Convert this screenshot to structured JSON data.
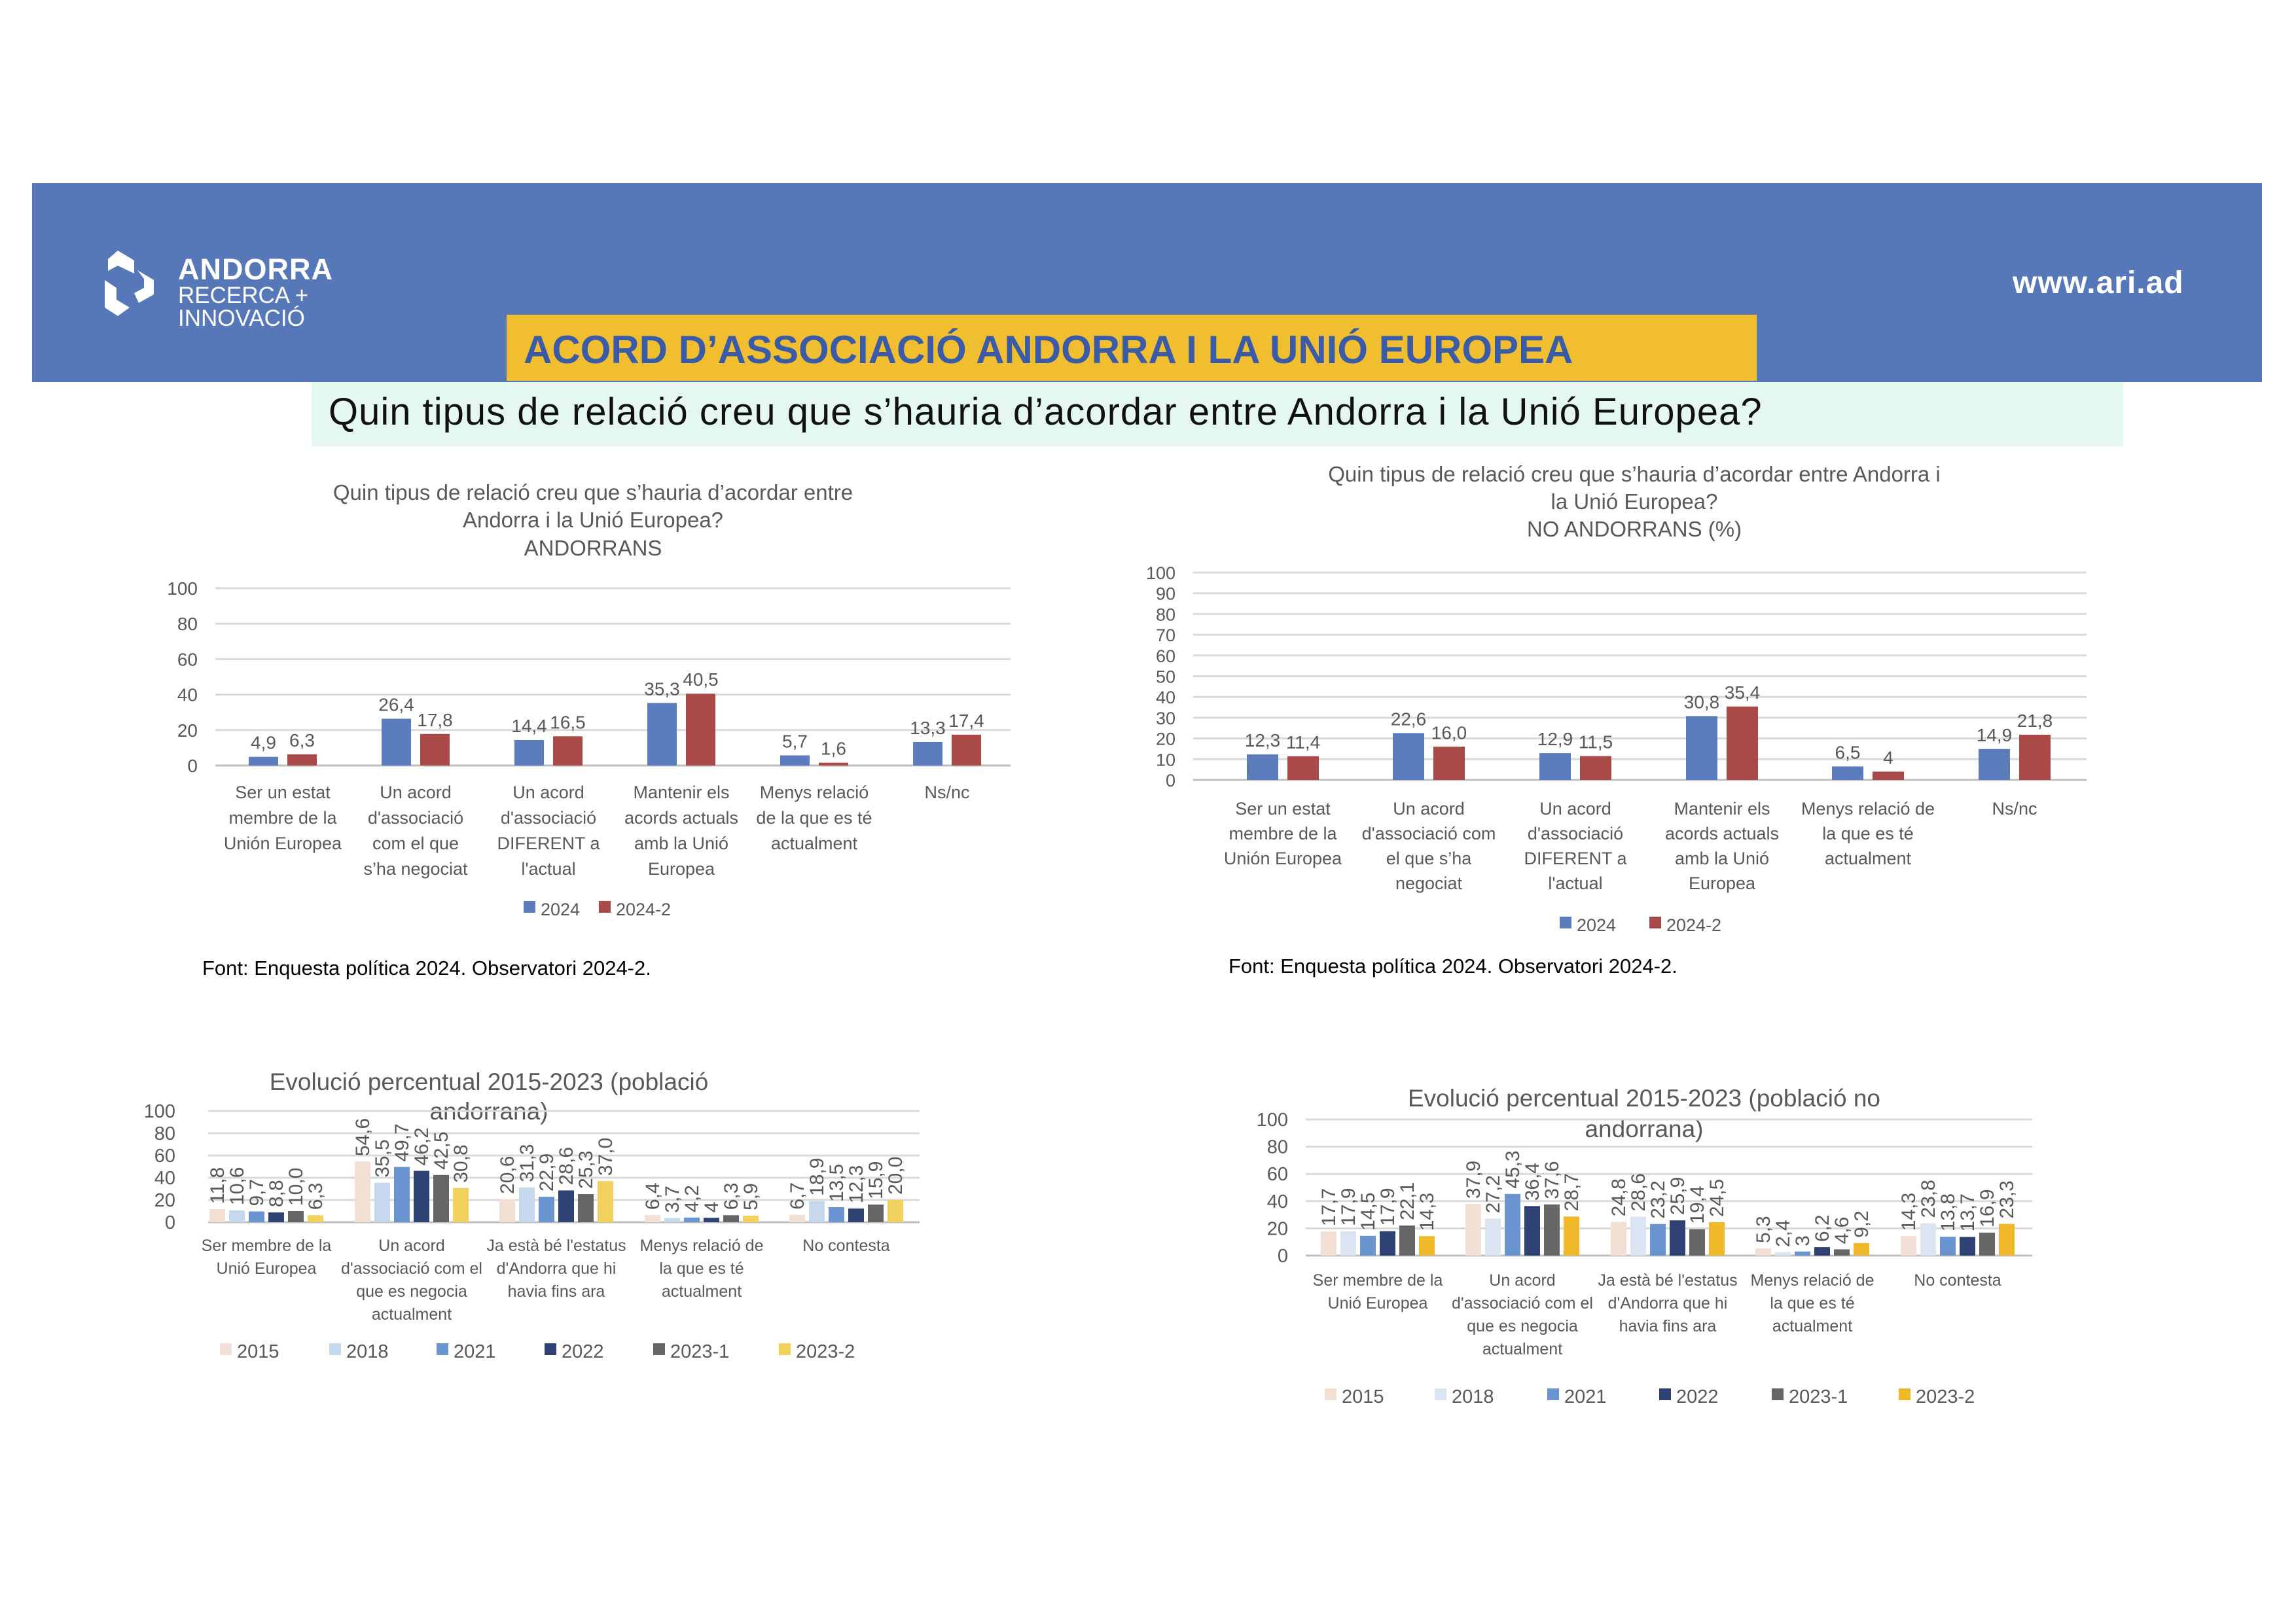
{
  "header": {
    "logo": {
      "line1": "ANDORRA",
      "line2": "RECERCA +",
      "line3": "INNOVACIÓ"
    },
    "website": "www.ari.ad",
    "banner_title": "ACORD D’ASSOCIACIÓ ANDORRA I LA UNIÓ EUROPEA",
    "question": "Quin tipus de relació creu que s’hauria d’acordar entre Andorra i la Unió Europea?"
  },
  "sources": [
    "Font: Enquesta política 2024. Observatori 2024-2.",
    "Font: Enquesta política 2024. Observatori 2024-2."
  ],
  "chart_data": [
    {
      "type": "bar",
      "title": [
        "Quin tipus de relació creu que s’hauria d’acordar entre",
        "Andorra i la Unió Europea?",
        "ANDORRANS"
      ],
      "ylim": [
        0,
        100
      ],
      "yticks": [
        "0",
        "20",
        "40",
        "60",
        "80",
        "100"
      ],
      "grid": true,
      "legend_position": "bottom",
      "categories": [
        [
          "Ser un estat",
          "membre de la",
          "Unión Europea"
        ],
        [
          "Un acord",
          "d'associació",
          "com el que",
          "s’ha negociat"
        ],
        [
          "Un acord",
          "d'associació",
          "DIFERENT a",
          "l'actual"
        ],
        [
          "Mantenir els",
          "acords actuals",
          "amb la Unió",
          "Europea"
        ],
        [
          "Menys relació",
          "de la que es té",
          "actualment"
        ],
        [
          "Ns/nc"
        ]
      ],
      "series": [
        {
          "name": "2024",
          "color": "#5B7DBE",
          "values": [
            4.9,
            26.4,
            14.4,
            35.3,
            5.7,
            13.3
          ],
          "labels": [
            "4,9",
            "26,4",
            "14,4",
            "35,3",
            "5,7",
            "13,3"
          ]
        },
        {
          "name": "2024-2",
          "color": "#A94A48",
          "values": [
            6.3,
            17.8,
            16.5,
            40.5,
            1.6,
            17.4
          ],
          "labels": [
            "6,3",
            "17,8",
            "16,5",
            "40,5",
            "1,6",
            "17,4"
          ]
        }
      ]
    },
    {
      "type": "bar",
      "title": [
        "Quin tipus de relació creu que s’hauria d’acordar entre Andorra i",
        "la Unió Europea?",
        "NO ANDORRANS (%)"
      ],
      "ylim": [
        0,
        100
      ],
      "yticks": [
        "0",
        "10",
        "20",
        "30",
        "40",
        "50",
        "60",
        "70",
        "80",
        "90",
        "100"
      ],
      "grid": true,
      "legend_position": "bottom",
      "categories": [
        [
          "Ser un estat",
          "membre de la",
          "Unión Europea"
        ],
        [
          "Un acord",
          "d'associació com",
          "el que s’ha",
          "negociat"
        ],
        [
          "Un acord",
          "d'associació",
          "DIFERENT a",
          "l'actual"
        ],
        [
          "Mantenir els",
          "acords actuals",
          "amb la Unió",
          "Europea"
        ],
        [
          "Menys relació de",
          "la que es té",
          "actualment"
        ],
        [
          "Ns/nc"
        ]
      ],
      "series": [
        {
          "name": "2024",
          "color": "#5B7DBE",
          "values": [
            12.3,
            22.6,
            12.9,
            30.8,
            6.5,
            14.9
          ],
          "labels": [
            "12,3",
            "22,6",
            "12,9",
            "30,8",
            "6,5",
            "14,9"
          ]
        },
        {
          "name": "2024-2",
          "color": "#A94A48",
          "values": [
            11.4,
            16.0,
            11.5,
            35.4,
            4,
            21.8
          ],
          "labels": [
            "11,4",
            "16,0",
            "11,5",
            "35,4",
            "4",
            "21,8"
          ]
        }
      ]
    },
    {
      "type": "bar",
      "title": [
        "Evolució percentual 2015-2023 (població",
        "andorrana)"
      ],
      "ylim": [
        0,
        100
      ],
      "yticks": [
        "0",
        "20",
        "40",
        "60",
        "80",
        "100"
      ],
      "grid": true,
      "legend_position": "bottom",
      "categories": [
        [
          "Ser membre de la",
          "Unió Europea"
        ],
        [
          "Un acord",
          "d'associació com el",
          "que es negocia",
          "actualment"
        ],
        [
          "Ja està bé l'estatus",
          "d'Andorra que hi",
          "havia fins ara"
        ],
        [
          "Menys relació de",
          "la que es té",
          "actualment"
        ],
        [
          "No contesta"
        ]
      ],
      "series": [
        {
          "name": "2015",
          "color": "#F3E0D5",
          "values": [
            11.8,
            54.6,
            20.6,
            6.4,
            6.7
          ],
          "labels": [
            "11,8",
            "54,6",
            "20,6",
            "6,4",
            "6,7"
          ]
        },
        {
          "name": "2018",
          "color": "#C5D8EE",
          "values": [
            10.6,
            35.5,
            31.3,
            3.7,
            18.9
          ],
          "labels": [
            "10,6",
            "35,5",
            "31,3",
            "3,7",
            "18,9"
          ]
        },
        {
          "name": "2021",
          "color": "#6A94D0",
          "values": [
            9.7,
            49.7,
            22.9,
            4.2,
            13.5
          ],
          "labels": [
            "9,7",
            "49,7",
            "22,9",
            "4,2",
            "13,5"
          ]
        },
        {
          "name": "2022",
          "color": "#2E4374",
          "values": [
            8.8,
            46.2,
            28.6,
            4,
            12.3
          ],
          "labels": [
            "8,8",
            "46,2",
            "28,6",
            "4",
            "12,3"
          ]
        },
        {
          "name": "2023-1",
          "color": "#666666",
          "values": [
            10.0,
            42.5,
            25.3,
            6.3,
            15.9
          ],
          "labels": [
            "10,0",
            "42,5",
            "25,3",
            "6,3",
            "15,9"
          ]
        },
        {
          "name": "2023-2",
          "color": "#F3D15E",
          "values": [
            6.3,
            30.8,
            37.0,
            5.9,
            20.0
          ],
          "labels": [
            "6,3",
            "30,8",
            "37,0",
            "5,9",
            "20,0"
          ]
        }
      ]
    },
    {
      "type": "bar",
      "title": [
        "Evolució percentual 2015-2023 (població no",
        "andorrana)"
      ],
      "ylim": [
        0,
        100
      ],
      "yticks": [
        "0",
        "20",
        "40",
        "60",
        "80",
        "100"
      ],
      "grid": true,
      "legend_position": "bottom",
      "categories": [
        [
          "Ser membre de la",
          "Unió Europea"
        ],
        [
          "Un acord",
          "d'associació com el",
          "que es negocia",
          "actualment"
        ],
        [
          "Ja està bé l'estatus",
          "d'Andorra que hi",
          "havia fins ara"
        ],
        [
          "Menys relació de",
          "la que es té",
          "actualment"
        ],
        [
          "No contesta"
        ]
      ],
      "series": [
        {
          "name": "2015",
          "color": "#F3E0D5",
          "values": [
            17.7,
            37.9,
            24.8,
            5.3,
            14.3
          ],
          "labels": [
            "17,7",
            "37,9",
            "24,8",
            "5,3",
            "14,3"
          ]
        },
        {
          "name": "2018",
          "color": "#DCE3F2",
          "values": [
            17.9,
            27.2,
            28.6,
            2.4,
            23.8
          ],
          "labels": [
            "17,9",
            "27,2",
            "28,6",
            "2,4",
            "23,8"
          ]
        },
        {
          "name": "2021",
          "color": "#6A94D0",
          "values": [
            14.5,
            45.3,
            23.2,
            3,
            13.8
          ],
          "labels": [
            "14,5",
            "45,3",
            "23,2",
            "3",
            "13,8"
          ]
        },
        {
          "name": "2022",
          "color": "#2E4374",
          "values": [
            17.9,
            36.4,
            25.9,
            6.2,
            13.7
          ],
          "labels": [
            "17,9",
            "36,4",
            "25,9",
            "6,2",
            "13,7"
          ]
        },
        {
          "name": "2023-1",
          "color": "#666666",
          "values": [
            22.1,
            37.6,
            19.4,
            4.6,
            16.9
          ],
          "labels": [
            "22,1",
            "37,6",
            "19,4",
            "4,6",
            "16,9"
          ]
        },
        {
          "name": "2023-2",
          "color": "#F0B929",
          "values": [
            14.3,
            28.7,
            24.5,
            9.2,
            23.3
          ],
          "labels": [
            "14,3",
            "28,7",
            "24,5",
            "9,2",
            "23,3"
          ]
        }
      ]
    }
  ]
}
